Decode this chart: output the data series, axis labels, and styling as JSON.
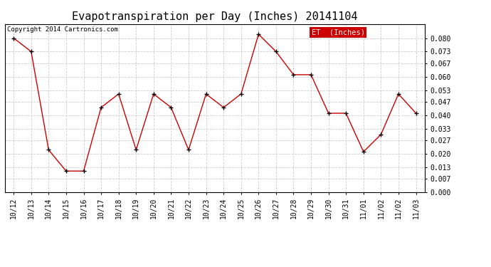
{
  "title": "Evapotranspiration per Day (Inches) 20141104",
  "copyright": "Copyright 2014 Cartronics.com",
  "legend_label": "ET  (Inches)",
  "legend_bg": "#cc0000",
  "legend_text_color": "#ffffff",
  "line_color": "#cc0000",
  "marker_color": "#000000",
  "background_color": "#ffffff",
  "grid_color": "#cccccc",
  "x_labels": [
    "10/12",
    "10/13",
    "10/14",
    "10/15",
    "10/16",
    "10/17",
    "10/18",
    "10/19",
    "10/20",
    "10/21",
    "10/22",
    "10/23",
    "10/24",
    "10/25",
    "10/26",
    "10/27",
    "10/28",
    "10/29",
    "10/30",
    "10/31",
    "11/01",
    "11/02",
    "11/02",
    "11/03"
  ],
  "y_values": [
    0.08,
    0.073,
    0.022,
    0.011,
    0.011,
    0.044,
    0.051,
    0.022,
    0.051,
    0.044,
    0.022,
    0.051,
    0.044,
    0.051,
    0.082,
    0.073,
    0.061,
    0.061,
    0.041,
    0.041,
    0.021,
    0.03,
    0.051,
    0.041
  ],
  "ylim": [
    0.0,
    0.0873
  ],
  "yticks": [
    0.0,
    0.007,
    0.013,
    0.02,
    0.027,
    0.033,
    0.04,
    0.047,
    0.053,
    0.06,
    0.067,
    0.073,
    0.08
  ],
  "title_fontsize": 11,
  "tick_fontsize": 7,
  "copyright_fontsize": 6.5
}
